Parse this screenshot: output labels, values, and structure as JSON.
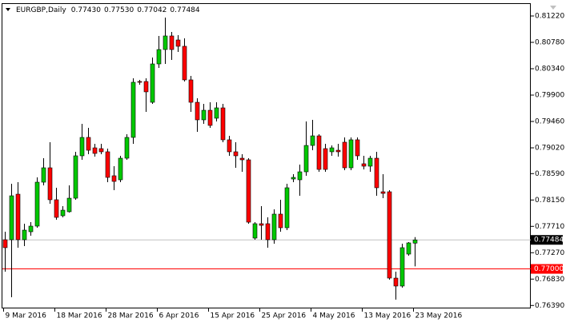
{
  "chart_data": {
    "type": "candlestick",
    "title": "EURGBP,Daily",
    "ohlc_labels": [
      "0.77430",
      "0.77530",
      "0.77042",
      "0.77484"
    ],
    "categories": [
      "9 Mar 2016",
      null,
      null,
      null,
      null,
      null,
      null,
      null,
      "18 Mar 2016",
      null,
      null,
      null,
      null,
      null,
      null,
      null,
      "28 Mar 2016",
      null,
      null,
      null,
      null,
      null,
      null,
      null,
      "6 Apr 2016",
      null,
      null,
      null,
      null,
      null,
      null,
      null,
      "15 Apr 2016",
      null,
      null,
      null,
      null,
      null,
      null,
      null,
      "25 Apr 2016",
      null,
      null,
      null,
      null,
      null,
      null,
      null,
      "4 May 2016",
      null,
      null,
      null,
      null,
      null,
      null,
      null,
      "13 May 2016",
      null,
      null,
      null,
      null,
      null,
      null,
      null,
      "23 May 2016"
    ],
    "series": {
      "open": [
        0.77487,
        0.77487,
        0.78247,
        0.77487,
        0.7762,
        0.77714,
        0.78447,
        0.78687,
        0.78154,
        0.77887,
        0.77954,
        0.7818,
        0.78887,
        0.79194,
        0.7902,
        0.79007,
        0.78954,
        0.78554,
        0.78487,
        0.78847,
        0.79194,
        0.80127,
        0.80127,
        0.7978,
        0.8042,
        0.8066,
        0.80887,
        0.8082,
        0.80714,
        0.80154,
        0.7978,
        0.79487,
        0.79647,
        0.79514,
        0.79687,
        0.79154,
        0.78954,
        0.78847,
        0.7882,
        0.77514,
        0.77754,
        0.77754,
        0.77487,
        0.77914,
        0.77687,
        0.785,
        0.78487,
        0.7862,
        0.7906,
        0.7922,
        0.79007,
        0.78954,
        0.7898,
        0.79114,
        0.78687,
        0.79154,
        0.78754,
        0.78714,
        0.78847,
        0.78287,
        0.78287,
        0.76847,
        0.76714,
        0.77247,
        0.7743
      ],
      "high": [
        0.7762,
        0.7842,
        0.78447,
        0.77754,
        0.7778,
        0.78527,
        0.78847,
        0.79114,
        0.78354,
        0.78047,
        0.78394,
        0.78954,
        0.7942,
        0.79354,
        0.79087,
        0.79087,
        0.79007,
        0.78714,
        0.78887,
        0.79247,
        0.8018,
        0.80154,
        0.8018,
        0.80527,
        0.80887,
        0.81194,
        0.80954,
        0.809,
        0.80847,
        0.8022,
        0.79847,
        0.79754,
        0.7978,
        0.7978,
        0.79754,
        0.7922,
        0.79114,
        0.78914,
        0.78847,
        0.7778,
        0.78047,
        0.7786,
        0.77994,
        0.78154,
        0.7842,
        0.7858,
        0.7874,
        0.7946,
        0.79487,
        0.79247,
        0.79087,
        0.7906,
        0.79087,
        0.79194,
        0.79194,
        0.79194,
        0.78887,
        0.78887,
        0.78954,
        0.7858,
        0.78314,
        0.76954,
        0.7742,
        0.77447,
        0.7753
      ],
      "low": [
        0.76954,
        0.76527,
        0.77354,
        0.7738,
        0.77554,
        0.77687,
        0.78394,
        0.78087,
        0.7782,
        0.7786,
        0.7794,
        0.78154,
        0.7882,
        0.78914,
        0.78874,
        0.78914,
        0.78447,
        0.78314,
        0.78447,
        0.7882,
        0.79087,
        0.80074,
        0.7962,
        0.79754,
        0.80354,
        0.8042,
        0.80487,
        0.8062,
        0.80127,
        0.7962,
        0.79287,
        0.7942,
        0.79354,
        0.7946,
        0.79114,
        0.78887,
        0.78687,
        0.7862,
        0.77754,
        0.77487,
        0.77487,
        0.77354,
        0.7742,
        0.7762,
        0.77647,
        0.78447,
        0.7822,
        0.78554,
        0.7898,
        0.7862,
        0.7862,
        0.78887,
        0.78874,
        0.78647,
        0.78647,
        0.7882,
        0.7866,
        0.7862,
        0.7822,
        0.7818,
        0.7682,
        0.76487,
        0.76687,
        0.7722,
        0.77042
      ],
      "close": [
        0.77354,
        0.7822,
        0.77487,
        0.77647,
        0.77714,
        0.78447,
        0.78687,
        0.78154,
        0.7786,
        0.7798,
        0.7818,
        0.78887,
        0.79194,
        0.7898,
        0.78927,
        0.78954,
        0.78527,
        0.7846,
        0.78847,
        0.79194,
        0.80114,
        0.80114,
        0.79954,
        0.8042,
        0.8066,
        0.80887,
        0.8066,
        0.80714,
        0.80154,
        0.7978,
        0.79487,
        0.79647,
        0.79394,
        0.79687,
        0.79154,
        0.78954,
        0.78887,
        0.7882,
        0.7778,
        0.77754,
        0.77727,
        0.77487,
        0.77914,
        0.77687,
        0.78354,
        0.78527,
        0.7862,
        0.7906,
        0.7922,
        0.7866,
        0.7866,
        0.7902,
        0.78954,
        0.78687,
        0.79154,
        0.78887,
        0.78714,
        0.78847,
        0.78354,
        0.7826,
        0.76847,
        0.76714,
        0.77354,
        0.77434,
        0.77484
      ]
    },
    "up_color": "#00c800",
    "down_color": "#ff0000",
    "ylim": [
      0.76354,
      0.8142
    ],
    "yticks": [
      {
        "value": 0.8122,
        "label": "0.81220"
      },
      {
        "value": 0.8078,
        "label": "0.80780"
      },
      {
        "value": 0.8034,
        "label": "0.80340"
      },
      {
        "value": 0.799,
        "label": "0.79900"
      },
      {
        "value": 0.7946,
        "label": "0.79460"
      },
      {
        "value": 0.7902,
        "label": "0.79020"
      },
      {
        "value": 0.7859,
        "label": "0.78590"
      },
      {
        "value": 0.7815,
        "label": "0.78150"
      },
      {
        "value": 0.7771,
        "label": "0.77710"
      },
      {
        "value": 0.7727,
        "label": "0.77270"
      },
      {
        "value": 0.7683,
        "label": "0.76830"
      },
      {
        "value": 0.7639,
        "label": "0.76390"
      }
    ],
    "price_line_color": "#c0c0c0",
    "level": {
      "value": 0.77,
      "label": "0.77000",
      "color": "#ff0000"
    },
    "grid": false
  }
}
